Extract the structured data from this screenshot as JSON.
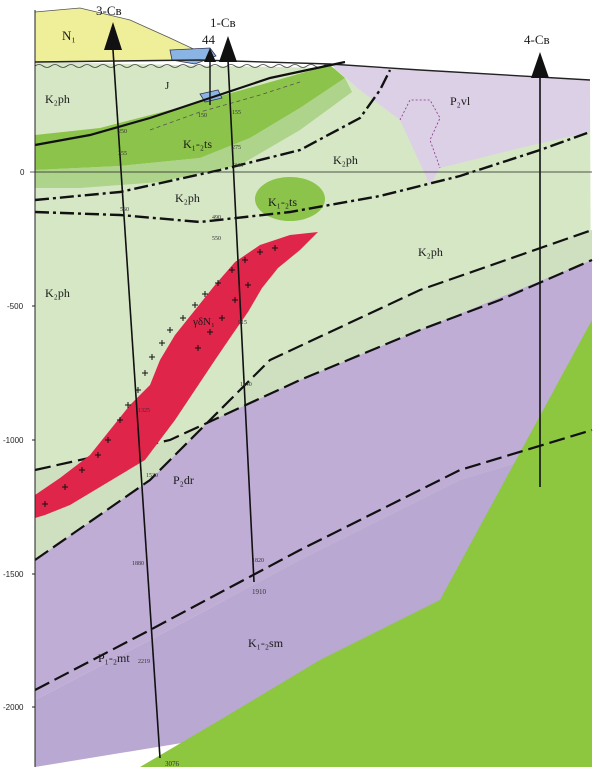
{
  "colors": {
    "K2ph": "#d6e7c6",
    "K12ts": "#8cc34a",
    "K12ts_light": "#aed38a",
    "P2vl": "#dcd0e6",
    "P2dr": "#bfadd6",
    "P12mt": "#b8a8d2",
    "K12sm": "#8dc63f",
    "N1": "#efef9a",
    "intrusion": "#e0254a",
    "J": "#8ab4e4"
  },
  "wells": [
    {
      "name": "3-Св",
      "top_label": "",
      "depth_label": "3076",
      "marks": [
        "250",
        "355",
        "560",
        "1325",
        "1530",
        "1880",
        "2219"
      ]
    },
    {
      "name": "1-Св",
      "top_label": "",
      "depth_label": "1910",
      "marks": [
        "155",
        "275",
        "346",
        "490",
        "550",
        "915",
        "1140",
        "1820"
      ]
    },
    {
      "name": "44",
      "top_label": "",
      "depth_label": "",
      "marks": [
        "150"
      ]
    },
    {
      "name": "4-Св",
      "top_label": "",
      "depth_label": "",
      "marks": []
    }
  ],
  "units": {
    "N1": "N₁",
    "J": "J",
    "K2ph_1": "K₂ph",
    "K2ph_2": "K₂ph",
    "K2ph_3": "K₂ph",
    "K2ph_4": "K₂ph",
    "K2ph_5": "K₂ph",
    "K12ts_1": "K₁-₂ts",
    "K12ts_2": "K₁-₂ts",
    "P2vl": "P₂vl",
    "intrusion": "γδN₁",
    "P2dr": "P₂dr",
    "P12mt": "P₁-₂mt",
    "K12sm": "K₁-₂sm"
  },
  "depth_axis": {
    "ticks": [
      "0",
      "-500",
      "-1000",
      "-1500",
      "-2000"
    ]
  }
}
